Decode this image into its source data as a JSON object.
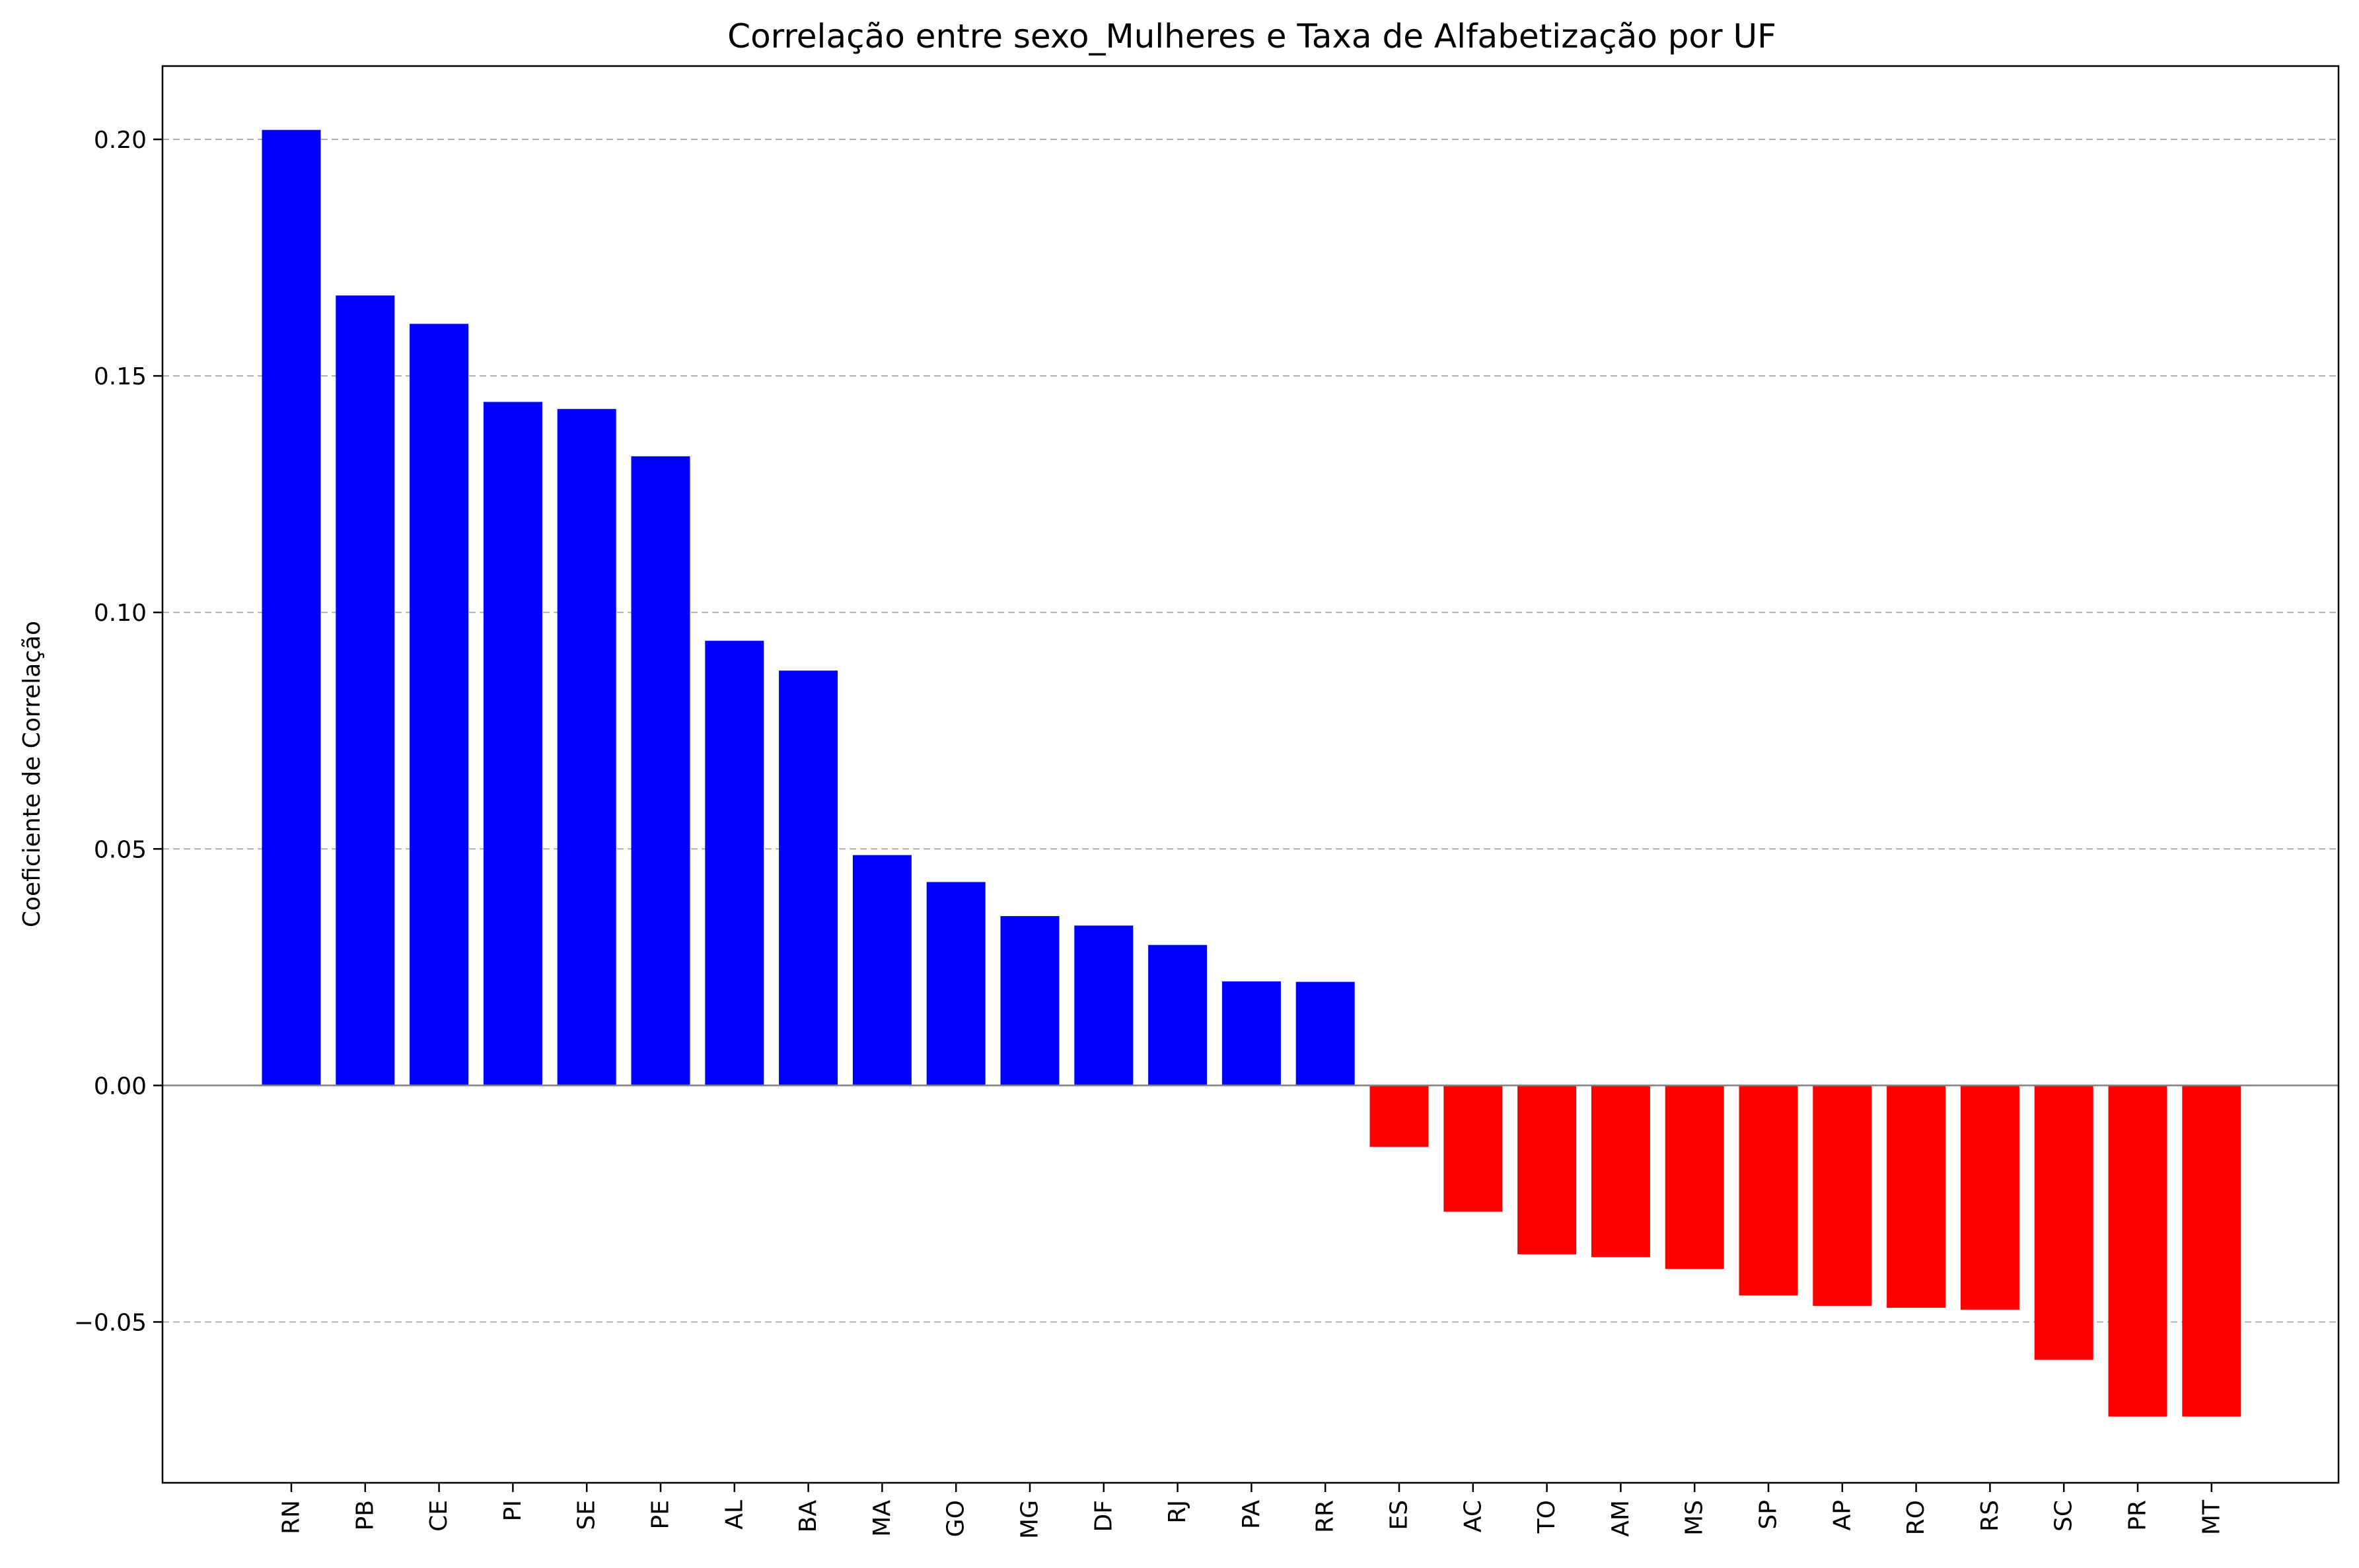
{
  "chart_data": {
    "type": "bar",
    "title": "Correlação entre sexo_Mulheres e Taxa de Alfabetização por UF",
    "xlabel": "",
    "ylabel": "Coeficiente de Correlação",
    "categories": [
      "RN",
      "PB",
      "CE",
      "PI",
      "SE",
      "PE",
      "AL",
      "BA",
      "MA",
      "GO",
      "MG",
      "DF",
      "RJ",
      "PA",
      "RR",
      "ES",
      "AC",
      "TO",
      "AM",
      "MS",
      "SP",
      "AP",
      "RO",
      "RS",
      "SC",
      "PR",
      "MT"
    ],
    "values": [
      0.202,
      0.167,
      0.161,
      0.1445,
      0.143,
      0.133,
      0.094,
      0.0877,
      0.0487,
      0.043,
      0.0358,
      0.0338,
      0.0297,
      0.022,
      0.0219,
      -0.013,
      -0.0267,
      -0.0357,
      -0.0363,
      -0.0388,
      -0.0444,
      -0.0466,
      -0.047,
      -0.0474,
      -0.058,
      -0.07,
      -0.07
    ],
    "ylim": [
      -0.084,
      0.2155
    ],
    "yticks": [
      -0.05,
      0.0,
      0.05,
      0.1,
      0.15,
      0.2
    ],
    "ytick_labels": [
      "−0.05",
      "0.00",
      "0.05",
      "0.10",
      "0.15",
      "0.20"
    ],
    "grid": "y-dashed",
    "colors": {
      "positive": "#0000ff",
      "negative": "#ff0000",
      "grid": "#b0b0b0",
      "zero_line": "#808080"
    }
  }
}
